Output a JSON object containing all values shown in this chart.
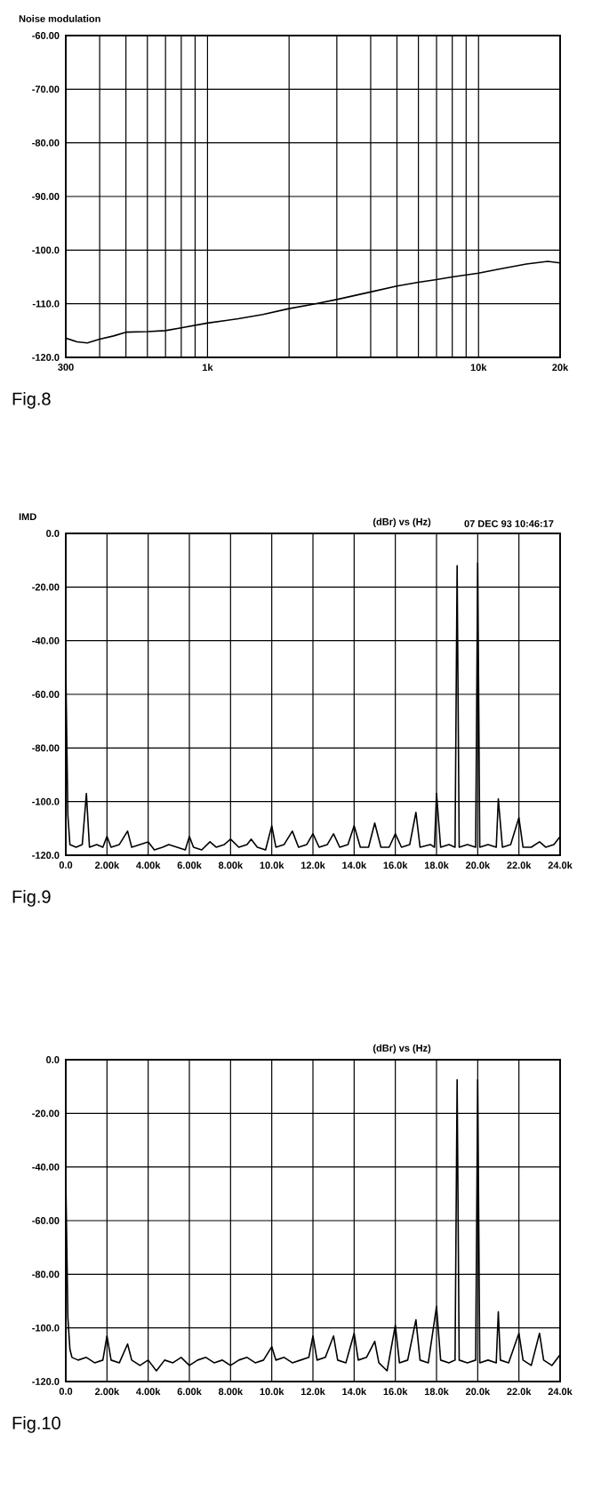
{
  "chart_data": [
    {
      "type": "line",
      "title": "Noise modulation",
      "log": "x",
      "grid": true,
      "line_style": "solid",
      "xlim": [
        300,
        20000
      ],
      "ylim": [
        -120,
        -60
      ],
      "xticks": [
        300,
        {
          "value": 400,
          "label": null
        },
        {
          "value": 500,
          "label": null
        },
        {
          "value": 600,
          "label": null
        },
        {
          "value": 700,
          "label": null
        },
        {
          "value": 800,
          "label": null
        },
        {
          "value": 900,
          "label": null
        },
        {
          "value": 1000,
          "label": "1k"
        },
        {
          "value": 2000,
          "label": null
        },
        {
          "value": 3000,
          "label": null
        },
        {
          "value": 4000,
          "label": null
        },
        {
          "value": 5000,
          "label": null
        },
        {
          "value": 6000,
          "label": null
        },
        {
          "value": 7000,
          "label": null
        },
        {
          "value": 8000,
          "label": null
        },
        {
          "value": 9000,
          "label": null
        },
        {
          "value": 10000,
          "label": "10k"
        },
        {
          "value": 20000,
          "label": "20k"
        }
      ],
      "yticks": [
        {
          "value": -120,
          "label": "-120.0"
        },
        {
          "value": -110,
          "label": "-110.0"
        },
        {
          "value": -100,
          "label": "-100.0"
        },
        {
          "value": -90,
          "label": "-90.00"
        },
        {
          "value": -80,
          "label": "-80.00"
        },
        {
          "value": -70,
          "label": "-70.00"
        },
        {
          "value": -60,
          "label": "-60.00"
        }
      ],
      "x": [
        300,
        330,
        360,
        400,
        450,
        500,
        600,
        700,
        800,
        1000,
        1300,
        1600,
        2000,
        2500,
        3000,
        4000,
        5000,
        6000,
        7000,
        8000,
        10000,
        12000,
        15000,
        18000,
        20000
      ],
      "series": [
        {
          "color": "#000000",
          "values": [
            -116.4,
            -117.1,
            -117.3,
            -116.6,
            -116.0,
            -115.3,
            -115.2,
            -115.0,
            -114.5,
            -113.6,
            -112.8,
            -112.0,
            -110.9,
            -110.0,
            -109.2,
            -107.8,
            -106.7,
            -106.0,
            -105.5,
            -105.0,
            -104.3,
            -103.5,
            -102.6,
            -102.1,
            -102.4
          ]
        }
      ],
      "annotations": [
        "Fig.8"
      ]
    },
    {
      "type": "line",
      "title": "IMD",
      "subtitle": "(dBr) vs (Hz)",
      "grid": true,
      "line_style": "solid",
      "xlim": [
        0,
        24000
      ],
      "ylim": [
        -120,
        0
      ],
      "xticks": [
        {
          "value": 0,
          "label": "0.0"
        },
        {
          "value": 2000,
          "label": "2.00k"
        },
        {
          "value": 4000,
          "label": "4.00k"
        },
        {
          "value": 6000,
          "label": "6.00k"
        },
        {
          "value": 8000,
          "label": "8.00k"
        },
        {
          "value": 10000,
          "label": "10.0k"
        },
        {
          "value": 12000,
          "label": "12.0k"
        },
        {
          "value": 14000,
          "label": "14.0k"
        },
        {
          "value": 16000,
          "label": "16.0k"
        },
        {
          "value": 18000,
          "label": "18.0k"
        },
        {
          "value": 20000,
          "label": "20.0k"
        },
        {
          "value": 22000,
          "label": "22.0k"
        },
        {
          "value": 24000,
          "label": "24.0k"
        }
      ],
      "yticks": [
        {
          "value": -120,
          "label": "-120.0"
        },
        {
          "value": -100,
          "label": "-100.0"
        },
        {
          "value": -80,
          "label": "-80.00"
        },
        {
          "value": -60,
          "label": "-60.00"
        },
        {
          "value": -40,
          "label": "-40.00"
        },
        {
          "value": -20,
          "label": "-20.00"
        },
        {
          "value": 0,
          "label": "0.0"
        }
      ],
      "x": [
        0,
        100,
        200,
        500,
        800,
        1000,
        1150,
        1500,
        1800,
        2000,
        2200,
        2600,
        3000,
        3200,
        3600,
        4000,
        4300,
        4700,
        5000,
        5400,
        5800,
        6000,
        6200,
        6600,
        7000,
        7300,
        7700,
        8000,
        8400,
        8800,
        9000,
        9300,
        9700,
        10000,
        10200,
        10600,
        11000,
        11300,
        11700,
        12000,
        12300,
        12700,
        13000,
        13300,
        13700,
        14000,
        14300,
        14700,
        15000,
        15300,
        15700,
        16000,
        16300,
        16700,
        17000,
        17200,
        17700,
        17900,
        18000,
        18200,
        18600,
        18900,
        19000,
        19100,
        19500,
        19900,
        20000,
        20100,
        20500,
        20900,
        21000,
        21200,
        21600,
        22000,
        22200,
        22600,
        23000,
        23300,
        23700,
        24000
      ],
      "series": [
        {
          "color": "#000000",
          "values": [
            -50,
            -105,
            -116,
            -117,
            -116,
            -97,
            -117,
            -116,
            -117,
            -113,
            -117,
            -116,
            -111,
            -117,
            -116,
            -115,
            -118,
            -117,
            -116,
            -117,
            -118,
            -113,
            -117,
            -118,
            -115,
            -117,
            -116,
            -114,
            -117,
            -116,
            -114,
            -117,
            -118,
            -109,
            -117,
            -116,
            -111,
            -117,
            -116,
            -112,
            -117,
            -116,
            -112,
            -117,
            -116,
            -109,
            -117,
            -117,
            -108,
            -117,
            -117,
            -112,
            -117,
            -116,
            -104,
            -117,
            -116,
            -117,
            -97,
            -117,
            -116,
            -117,
            -12,
            -117,
            -116,
            -117,
            -11,
            -117,
            -116,
            -117,
            -99,
            -117,
            -116,
            -106,
            -117,
            -117,
            -115,
            -117,
            -116,
            -113
          ]
        }
      ],
      "annotations": [
        "07 DEC 93 10:46:17",
        "Fig.9"
      ]
    },
    {
      "type": "line",
      "subtitle": "(dBr) vs (Hz)",
      "grid": true,
      "line_style": "solid",
      "xlim": [
        0,
        24000
      ],
      "ylim": [
        -120,
        0
      ],
      "xticks": [
        {
          "value": 0,
          "label": "0.0"
        },
        {
          "value": 2000,
          "label": "2.00k"
        },
        {
          "value": 4000,
          "label": "4.00k"
        },
        {
          "value": 6000,
          "label": "6.00k"
        },
        {
          "value": 8000,
          "label": "8.00k"
        },
        {
          "value": 10000,
          "label": "10.0k"
        },
        {
          "value": 12000,
          "label": "12.0k"
        },
        {
          "value": 14000,
          "label": "14.0k"
        },
        {
          "value": 16000,
          "label": "16.0k"
        },
        {
          "value": 18000,
          "label": "18.0k"
        },
        {
          "value": 20000,
          "label": "20.0k"
        },
        {
          "value": 22000,
          "label": "22.0k"
        },
        {
          "value": 24000,
          "label": "24.0k"
        }
      ],
      "yticks": [
        {
          "value": -120,
          "label": "-120.0"
        },
        {
          "value": -100,
          "label": "-100.0"
        },
        {
          "value": -80,
          "label": "-80.00"
        },
        {
          "value": -60,
          "label": "-60.00"
        },
        {
          "value": -40,
          "label": "-40.00"
        },
        {
          "value": -20,
          "label": "-20.00"
        },
        {
          "value": 0,
          "label": "0.0"
        }
      ],
      "x": [
        0,
        100,
        200,
        300,
        600,
        1000,
        1400,
        1800,
        2000,
        2200,
        2600,
        3000,
        3200,
        3600,
        4000,
        4400,
        4800,
        5200,
        5600,
        6000,
        6400,
        6800,
        7200,
        7600,
        8000,
        8400,
        8800,
        9200,
        9600,
        10000,
        10200,
        10600,
        11000,
        11400,
        11800,
        12000,
        12200,
        12600,
        13000,
        13200,
        13600,
        14000,
        14200,
        14600,
        15000,
        15200,
        15600,
        16000,
        16200,
        16600,
        17000,
        17200,
        17600,
        18000,
        18200,
        18600,
        18900,
        19000,
        19100,
        19500,
        19900,
        20000,
        20100,
        20500,
        20900,
        21000,
        21100,
        21500,
        22000,
        22200,
        22600,
        23000,
        23200,
        23600,
        24000
      ],
      "series": [
        {
          "color": "#000000",
          "values": [
            -44,
            -96,
            -108,
            -111,
            -112,
            -111,
            -113,
            -112,
            -103,
            -112,
            -113,
            -106,
            -112,
            -114,
            -112,
            -116,
            -112,
            -113,
            -111,
            -114,
            -112,
            -111,
            -113,
            -112,
            -114,
            -112,
            -111,
            -113,
            -112,
            -107,
            -112,
            -111,
            -113,
            -112,
            -111,
            -103,
            -112,
            -111,
            -103,
            -112,
            -113,
            -102,
            -112,
            -111,
            -105,
            -113,
            -116,
            -99,
            -113,
            -112,
            -97,
            -112,
            -113,
            -92,
            -112,
            -113,
            -112,
            -7.5,
            -112,
            -113,
            -112,
            -7.5,
            -113,
            -112,
            -113,
            -94,
            -112,
            -113,
            -102,
            -112,
            -114,
            -102,
            -112,
            -114,
            -110
          ]
        }
      ],
      "annotations": [
        "Fig.10"
      ]
    }
  ]
}
